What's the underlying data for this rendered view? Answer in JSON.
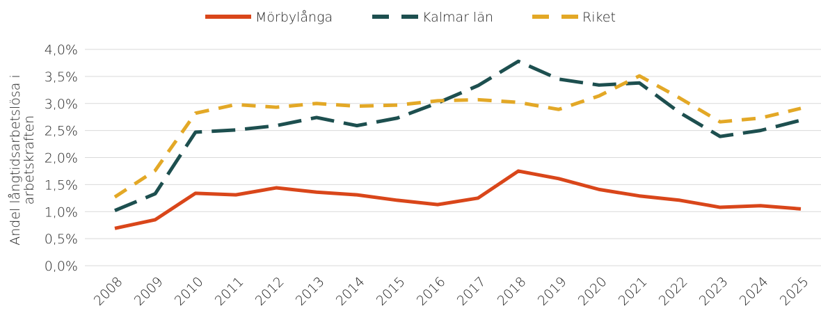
{
  "chart_data": {
    "type": "line",
    "y_label": [
      "Andel långtidsarbetslösa i",
      "arbetskraften"
    ],
    "categories": [
      "2008",
      "2009",
      "2010",
      "2011",
      "2012",
      "2013",
      "2014",
      "2015",
      "2016",
      "2017",
      "2018",
      "2019",
      "2020",
      "2021",
      "2022",
      "2023",
      "2024",
      "2025"
    ],
    "series": [
      {
        "name": "Mörbylånga",
        "color": "#d9461a",
        "dash": "solid",
        "values": [
          0.69,
          0.85,
          1.34,
          1.31,
          1.44,
          1.36,
          1.31,
          1.21,
          1.13,
          1.25,
          1.75,
          1.61,
          1.41,
          1.29,
          1.21,
          1.08,
          1.11,
          1.05
        ]
      },
      {
        "name": "Kalmar län",
        "color": "#1d4f4f",
        "dash": "long",
        "values": [
          1.02,
          1.33,
          2.47,
          2.51,
          2.59,
          2.74,
          2.59,
          2.73,
          3.01,
          3.33,
          3.78,
          3.45,
          3.34,
          3.38,
          2.83,
          2.39,
          2.5,
          2.69
        ]
      },
      {
        "name": "Riket",
        "color": "#e3a826",
        "dash": "short",
        "values": [
          1.27,
          1.76,
          2.82,
          2.98,
          2.93,
          3.0,
          2.95,
          2.97,
          3.05,
          3.07,
          3.02,
          2.89,
          3.14,
          3.51,
          3.1,
          2.66,
          2.73,
          2.91
        ]
      }
    ],
    "ylim": [
      0,
      4
    ],
    "yticks": [
      {
        "value": 0,
        "label": "0,0%"
      },
      {
        "value": 0.5,
        "label": "0,5%"
      },
      {
        "value": 1,
        "label": "1,0%"
      },
      {
        "value": 1.5,
        "label": "1,5%"
      },
      {
        "value": 2,
        "label": "2,0%"
      },
      {
        "value": 2.5,
        "label": "2,5%"
      },
      {
        "value": 3,
        "label": "3,0%"
      },
      {
        "value": 3.5,
        "label": "3,5%"
      },
      {
        "value": 4,
        "label": "4,0%"
      }
    ],
    "grid": true,
    "legend": "top"
  }
}
